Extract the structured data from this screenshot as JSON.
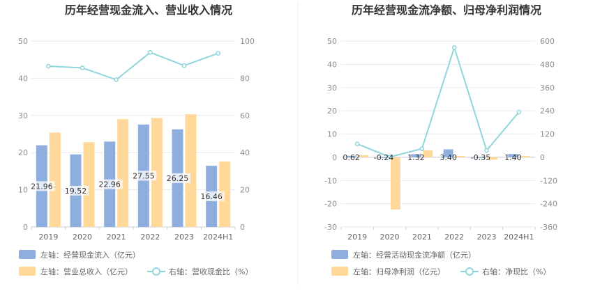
{
  "chart_data": [
    {
      "type": "bar",
      "title": "历年经营现金流入、营业收入情况",
      "categories": [
        "2019",
        "2020",
        "2021",
        "2022",
        "2023",
        "2024H1"
      ],
      "left_axis": {
        "min": 0,
        "max": 50,
        "ticks": [
          0,
          10,
          20,
          30,
          40,
          50
        ]
      },
      "right_axis": {
        "min": 0,
        "max": 100,
        "ticks": [
          0,
          20,
          40,
          60,
          80,
          100
        ]
      },
      "series": [
        {
          "name": "左轴：经营现金流入（亿元）",
          "kind": "bar",
          "axis": "left",
          "color": "#8EAFDE",
          "values": [
            21.96,
            19.52,
            22.96,
            27.55,
            26.25,
            16.46
          ],
          "labels": [
            "21.96",
            "19.52",
            "22.96",
            "27.55",
            "26.25",
            "16.46"
          ]
        },
        {
          "name": "左轴：营业总收入（亿元）",
          "kind": "bar",
          "axis": "left",
          "color": "#FFD89A",
          "values": [
            25.4,
            22.8,
            29.0,
            29.3,
            30.3,
            17.6
          ]
        },
        {
          "name": "右轴：营收现金比（%）",
          "kind": "line",
          "axis": "right",
          "color": "#8ED6DA",
          "values": [
            86.5,
            85.6,
            79.2,
            93.9,
            86.8,
            93.4
          ]
        }
      ],
      "grid": true
    },
    {
      "type": "bar",
      "title": "历年经营现金流净额、归母净利润情况",
      "categories": [
        "2019",
        "2020",
        "2021",
        "2022",
        "2023",
        "2024H1"
      ],
      "left_axis": {
        "min": -30,
        "max": 50,
        "ticks": [
          -30,
          -20,
          -10,
          0,
          10,
          20,
          30,
          40,
          50
        ]
      },
      "right_axis": {
        "min": -360,
        "max": 600,
        "ticks": [
          -360,
          -240,
          -120,
          0,
          120,
          240,
          360,
          480,
          600
        ]
      },
      "series": [
        {
          "name": "左轴：经营活动现金流净额（亿元）",
          "kind": "bar",
          "axis": "left",
          "color": "#8EAFDE",
          "values": [
            0.62,
            -0.24,
            1.32,
            3.4,
            -0.35,
            1.4
          ],
          "labels": [
            "0.62",
            "-0.24",
            "1.32",
            "3.40",
            "-0.35",
            "1.40"
          ]
        },
        {
          "name": "左轴：归母净利润（亿元）",
          "kind": "bar",
          "axis": "left",
          "color": "#FFD89A",
          "values": [
            0.9,
            -22.5,
            3.0,
            0.6,
            -1.0,
            0.6
          ]
        },
        {
          "name": "右轴：净现比（%）",
          "kind": "line",
          "axis": "right",
          "color": "#8ED6DA",
          "values": [
            68.9,
            1.1,
            44.0,
            566.7,
            35.0,
            233.3
          ]
        }
      ],
      "grid": true
    }
  ]
}
